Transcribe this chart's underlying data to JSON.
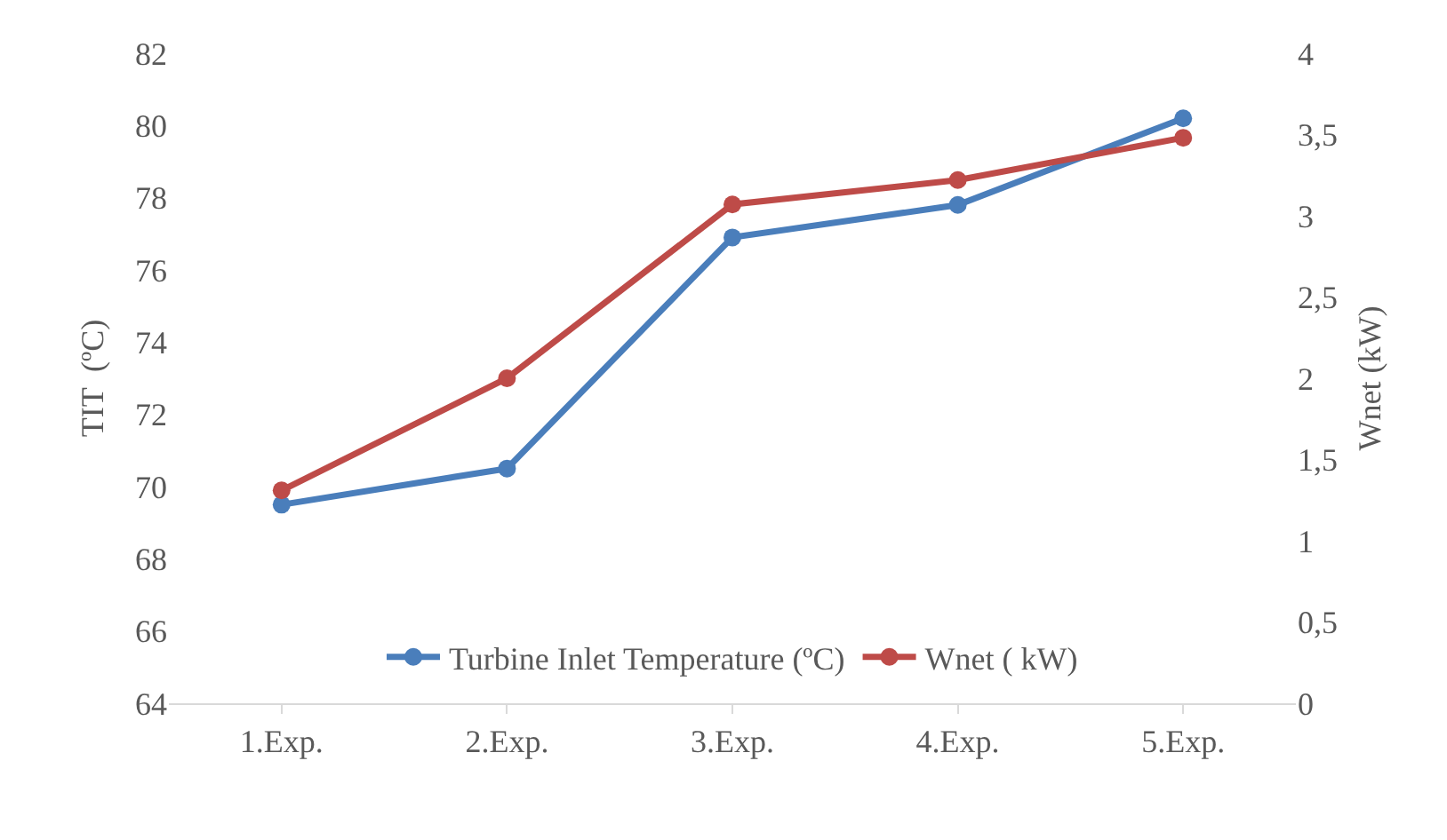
{
  "chart_data": {
    "type": "line",
    "categories": [
      "1.Exp.",
      "2.Exp.",
      "3.Exp.",
      "4.Exp.",
      "5.Exp."
    ],
    "ylabel": "TIT  (ºC)",
    "y2label": "Wnet (kW)",
    "series": [
      {
        "name": "Turbine Inlet Temperature (ºC)",
        "color": "#4a7ebb",
        "values": [
          69.5,
          70.5,
          76.9,
          77.8,
          80.2
        ]
      },
      {
        "name": "Wnet ( kW)",
        "color": "#be4b48",
        "axis": "y2",
        "values": [
          1.31,
          2.0,
          3.07,
          3.22,
          3.48
        ]
      }
    ],
    "ylim": [
      64,
      82
    ],
    "yticks": [
      64,
      66,
      68,
      70,
      72,
      74,
      76,
      78,
      80,
      82
    ],
    "y2lim": [
      0,
      4
    ],
    "y2ticks": [
      0,
      {
        "value": 0.5,
        "label": "0,5"
      },
      1,
      {
        "value": 1.5,
        "label": "1,5"
      },
      2,
      {
        "value": 2.5,
        "label": "2,5"
      },
      3,
      {
        "value": 3.5,
        "label": "3,5"
      },
      4
    ],
    "grid": false,
    "legend": "bottom",
    "marker": "circle",
    "line_style": "solid"
  }
}
